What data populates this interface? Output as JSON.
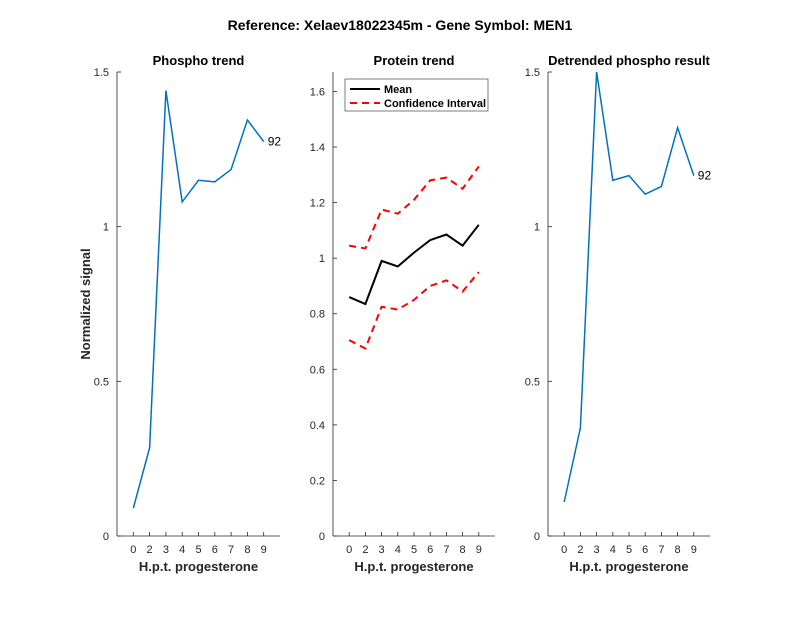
{
  "suptitle": "Reference:  Xelaev18022345m - Gene Symbol:  MEN1",
  "chart_data": [
    {
      "type": "line",
      "title": "Phospho trend",
      "xlabel": "H.p.t. progesterone",
      "ylabel": "Normalized signal",
      "categories": [
        "0",
        "2",
        "3",
        "4",
        "5",
        "6",
        "7",
        "8",
        "9"
      ],
      "ylim": [
        0,
        1.5
      ],
      "yticks": [
        "0",
        "0.5",
        "1",
        "1.5"
      ],
      "series": [
        {
          "name": "Phospho",
          "color": "#0072BD",
          "values": [
            0.09,
            0.285,
            1.44,
            1.08,
            1.15,
            1.145,
            1.185,
            1.345,
            1.275
          ]
        }
      ],
      "annotation": "92"
    },
    {
      "type": "line",
      "title": "Protein trend",
      "xlabel": "H.p.t. progesterone",
      "ylabel": "",
      "categories": [
        "0",
        "2",
        "3",
        "4",
        "5",
        "6",
        "7",
        "8",
        "9"
      ],
      "ylim": [
        0,
        1.67
      ],
      "yticks": [
        "0",
        "0.2",
        "0.4",
        "0.6",
        "0.8",
        "1",
        "1.2",
        "1.4",
        "1.6"
      ],
      "legend": {
        "placement": "top-left",
        "entries": [
          "Mean",
          "Confidence Interval"
        ]
      },
      "series": [
        {
          "name": "Mean",
          "color": "#000000",
          "values": [
            0.86,
            0.835,
            0.99,
            0.97,
            1.02,
            1.065,
            1.085,
            1.045,
            1.12
          ]
        },
        {
          "name": "Confidence Interval upper",
          "color": "#FF0000",
          "values": [
            1.045,
            1.035,
            1.175,
            1.16,
            1.21,
            1.28,
            1.29,
            1.25,
            1.33
          ]
        },
        {
          "name": "Confidence Interval lower",
          "color": "#FF0000",
          "values": [
            0.705,
            0.675,
            0.825,
            0.815,
            0.85,
            0.9,
            0.92,
            0.88,
            0.95
          ]
        }
      ]
    },
    {
      "type": "line",
      "title": "Detrended phospho result",
      "xlabel": "H.p.t. progesterone",
      "ylabel": "",
      "categories": [
        "0",
        "2",
        "3",
        "4",
        "5",
        "6",
        "7",
        "8",
        "9"
      ],
      "ylim": [
        0,
        1.5
      ],
      "yticks": [
        "0",
        "0.5",
        "1",
        "1.5"
      ],
      "series": [
        {
          "name": "Detrended",
          "color": "#0072BD",
          "values": [
            0.11,
            0.35,
            1.5,
            1.15,
            1.165,
            1.105,
            1.13,
            1.32,
            1.165
          ]
        }
      ],
      "annotation": "92"
    }
  ]
}
